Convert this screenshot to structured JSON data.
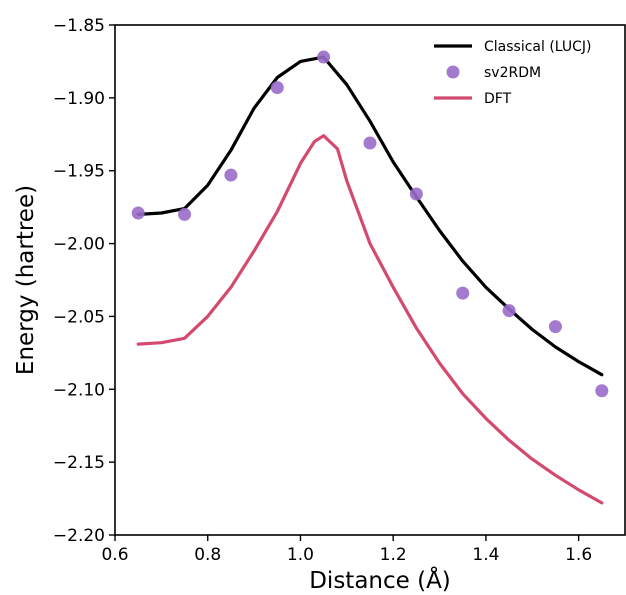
{
  "chart_data": {
    "type": "line",
    "xlabel": "Distance (Å)",
    "ylabel": "Energy (hartree)",
    "xlim": [
      0.6,
      1.7
    ],
    "ylim": [
      -2.2,
      -1.85
    ],
    "xticks": [
      "0.6",
      "0.8",
      "1.0",
      "1.2",
      "1.4",
      "1.6"
    ],
    "yticks": [
      "−1.85",
      "−1.90",
      "−1.95",
      "−2.00",
      "−2.05",
      "−2.10",
      "−2.15",
      "−2.20"
    ],
    "legend_position": "top-right",
    "grid": false,
    "series": [
      {
        "name": "Classical (LUCJ)",
        "kind": "line",
        "color": "#000000",
        "x": [
          0.65,
          0.7,
          0.75,
          0.8,
          0.85,
          0.9,
          0.95,
          1.0,
          1.05,
          1.1,
          1.15,
          1.2,
          1.25,
          1.3,
          1.35,
          1.4,
          1.45,
          1.5,
          1.55,
          1.6,
          1.65
        ],
        "y": [
          -1.98,
          -1.979,
          -1.976,
          -1.96,
          -1.936,
          -1.907,
          -1.886,
          -1.875,
          -1.872,
          -1.891,
          -1.916,
          -1.944,
          -1.968,
          -1.991,
          -2.012,
          -2.03,
          -2.045,
          -2.059,
          -2.071,
          -2.081,
          -2.09
        ]
      },
      {
        "name": "sv2RDM",
        "kind": "scatter",
        "color": "#9a6bc9",
        "x": [
          0.65,
          0.75,
          0.85,
          0.95,
          1.05,
          1.15,
          1.25,
          1.35,
          1.45,
          1.55,
          1.65
        ],
        "y": [
          -1.979,
          -1.98,
          -1.953,
          -1.893,
          -1.872,
          -1.931,
          -1.966,
          -2.034,
          -2.046,
          -2.057,
          -2.101
        ]
      },
      {
        "name": "DFT",
        "kind": "line",
        "color": "#d44a6f",
        "x": [
          0.65,
          0.7,
          0.75,
          0.8,
          0.85,
          0.9,
          0.95,
          1.0,
          1.03,
          1.05,
          1.08,
          1.1,
          1.15,
          1.2,
          1.25,
          1.3,
          1.35,
          1.4,
          1.45,
          1.5,
          1.55,
          1.6,
          1.65
        ],
        "y": [
          -2.069,
          -2.068,
          -2.065,
          -2.05,
          -2.03,
          -2.005,
          -1.978,
          -1.945,
          -1.93,
          -1.926,
          -1.935,
          -1.957,
          -2.0,
          -2.03,
          -2.058,
          -2.082,
          -2.103,
          -2.12,
          -2.135,
          -2.148,
          -2.159,
          -2.169,
          -2.178
        ]
      }
    ]
  }
}
